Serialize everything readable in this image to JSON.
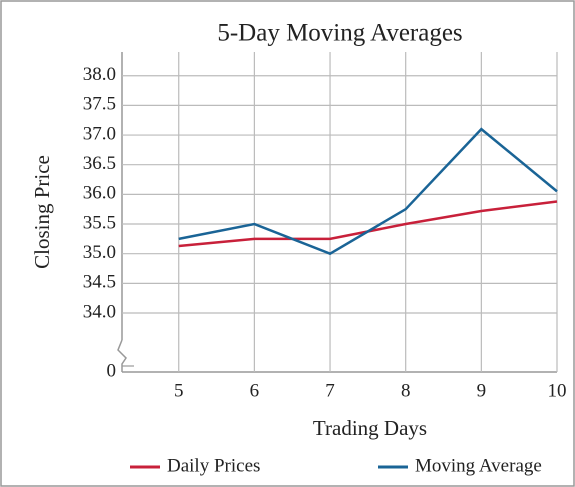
{
  "chart_data": {
    "type": "line",
    "title": "5-Day Moving Averages",
    "xlabel": "Trading Days",
    "ylabel": "Closing Price",
    "x": [
      5,
      6,
      7,
      8,
      9,
      10
    ],
    "series": [
      {
        "name": "Daily Prices",
        "color": "#c8203a",
        "values": [
          35.13,
          35.25,
          35.25,
          35.5,
          35.72,
          35.88
        ]
      },
      {
        "name": "Moving Average",
        "color": "#1a6496",
        "values": [
          35.25,
          35.5,
          35.0,
          35.75,
          37.1,
          36.05
        ]
      }
    ],
    "xlim": [
      4.25,
      10
    ],
    "xticks": [
      5,
      6,
      7,
      8,
      9,
      10
    ],
    "ylim": [
      0,
      38.4
    ],
    "yticks": [
      0,
      {
        "value": 34,
        "label": "34.0"
      },
      {
        "value": 34.5,
        "label": "34.5"
      },
      {
        "value": 35,
        "label": "35.0"
      },
      {
        "value": 35.5,
        "label": "35.5"
      },
      {
        "value": 36,
        "label": "36.0"
      },
      {
        "value": 36.5,
        "label": "36.5"
      },
      {
        "value": 37,
        "label": "37.0"
      },
      {
        "value": 37.5,
        "label": "37.5"
      },
      {
        "value": 38,
        "label": "38.0"
      }
    ],
    "grid": true,
    "legend": "bottom"
  }
}
